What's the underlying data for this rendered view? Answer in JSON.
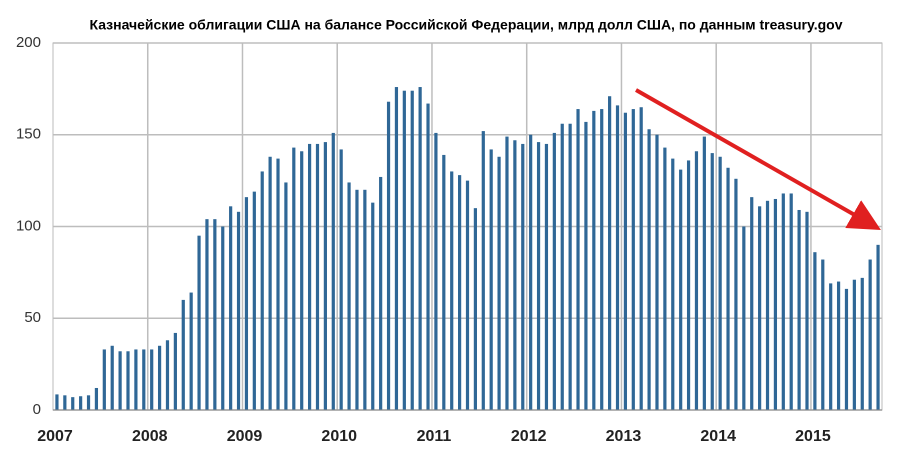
{
  "chart_data": {
    "type": "bar",
    "title": "Казначейские облигации США на балансе Российской Федерации, млрд долл США, по данным treasury.gov",
    "categories": [
      "2007",
      null,
      null,
      null,
      null,
      null,
      null,
      null,
      null,
      null,
      null,
      null,
      "2008",
      null,
      null,
      null,
      null,
      null,
      null,
      null,
      null,
      null,
      null,
      null,
      "2009",
      null,
      null,
      null,
      null,
      null,
      null,
      null,
      null,
      null,
      null,
      null,
      "2010",
      null,
      null,
      null,
      null,
      null,
      null,
      null,
      null,
      null,
      null,
      null,
      "2011",
      null,
      null,
      null,
      null,
      null,
      null,
      null,
      null,
      null,
      null,
      null,
      "2012",
      null,
      null,
      null,
      null,
      null,
      null,
      null,
      null,
      null,
      null,
      null,
      "2013",
      null,
      null,
      null,
      null,
      null,
      null,
      null,
      null,
      null,
      null,
      null,
      "2014",
      null,
      null,
      null,
      null,
      null,
      null,
      null,
      null,
      null,
      null,
      null,
      "2015",
      null,
      null,
      null,
      null,
      null,
      null,
      null,
      null
    ],
    "values": [
      8.5,
      8,
      7,
      7.5,
      8,
      12,
      33,
      35,
      32,
      32,
      33,
      33,
      33,
      35,
      38,
      42,
      60,
      64,
      95,
      104,
      104,
      100,
      111,
      108,
      116,
      119,
      130,
      138,
      137,
      124,
      143,
      141,
      145,
      145,
      146,
      151,
      142,
      124,
      120,
      120,
      113,
      127,
      168,
      176,
      174,
      174,
      176,
      167,
      151,
      139,
      130,
      128,
      125,
      110,
      152,
      142,
      138,
      149,
      147,
      145,
      150,
      146,
      145,
      151,
      156,
      156,
      164,
      157,
      163,
      164,
      171,
      166,
      162,
      164,
      165,
      153,
      150,
      143,
      137,
      131,
      136,
      141,
      149,
      140,
      138,
      132,
      126,
      100,
      116,
      111,
      114,
      115,
      118,
      118,
      109,
      108,
      86,
      82,
      69,
      70,
      66,
      71,
      72,
      82,
      90
    ],
    "color": "#2f6796",
    "ylim": [
      0,
      200
    ],
    "yticks": [
      0,
      50,
      100,
      150,
      200
    ],
    "grid": true
  }
}
